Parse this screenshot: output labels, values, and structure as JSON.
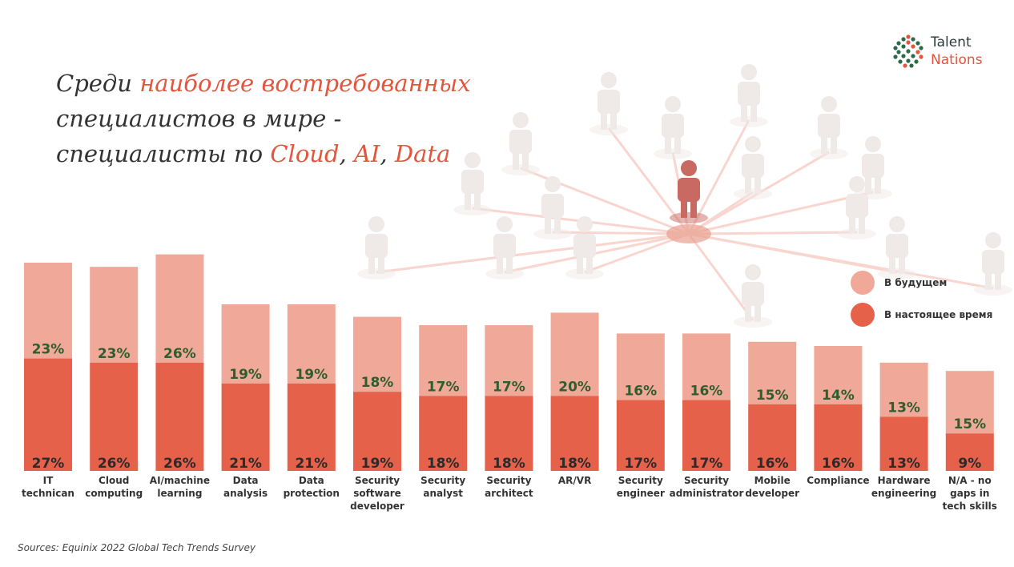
{
  "title": {
    "part1": "Среди ",
    "part2": "наиболее востребованных",
    "line2": "специалистов в мире -",
    "part3": "специалисты по ",
    "hl_cloud": "Cloud",
    "sep1": ", ",
    "hl_ai": "AI",
    "sep2": ", ",
    "hl_data": "Data"
  },
  "logo": {
    "line1": "Talent",
    "line2": "Nations"
  },
  "legend": [
    {
      "label": "В будущем",
      "color": "#f0a898"
    },
    {
      "label": "В настоящее время",
      "color": "#e5614a"
    }
  ],
  "source": "Sources: Equinix 2022 Global Tech Trends Survey",
  "colors": {
    "accent": "#e3553d",
    "future": "#f0a898",
    "current": "#e5614a",
    "label_green": "#2e5e2e"
  },
  "chart_data": {
    "type": "bar",
    "stacked": true,
    "categories": [
      [
        "IT",
        "technican"
      ],
      [
        "Cloud",
        "computing"
      ],
      [
        "AI/machine",
        "learning"
      ],
      [
        "Data",
        "analysis"
      ],
      [
        "Data",
        "protection"
      ],
      [
        "Security",
        "software",
        "developer"
      ],
      [
        "Security",
        "analyst"
      ],
      [
        "Security",
        "architect"
      ],
      [
        "AR/VR"
      ],
      [
        "Security",
        "engineer"
      ],
      [
        "Security",
        "administrator"
      ],
      [
        "Mobile",
        "developer"
      ],
      [
        "Compliance"
      ],
      [
        "Hardware",
        "engineering"
      ],
      [
        "N/A - no",
        "gaps in",
        "tech skills"
      ]
    ],
    "series": [
      {
        "name": "В настоящее время",
        "color": "#e5614a",
        "values": [
          27,
          26,
          26,
          21,
          21,
          19,
          18,
          18,
          18,
          17,
          17,
          16,
          16,
          13,
          9
        ]
      },
      {
        "name": "В будущем",
        "color": "#f0a898",
        "values": [
          23,
          23,
          26,
          19,
          19,
          18,
          17,
          17,
          20,
          16,
          16,
          15,
          14,
          13,
          15
        ]
      }
    ],
    "unit": "%",
    "ylim": [
      0,
      52
    ]
  }
}
